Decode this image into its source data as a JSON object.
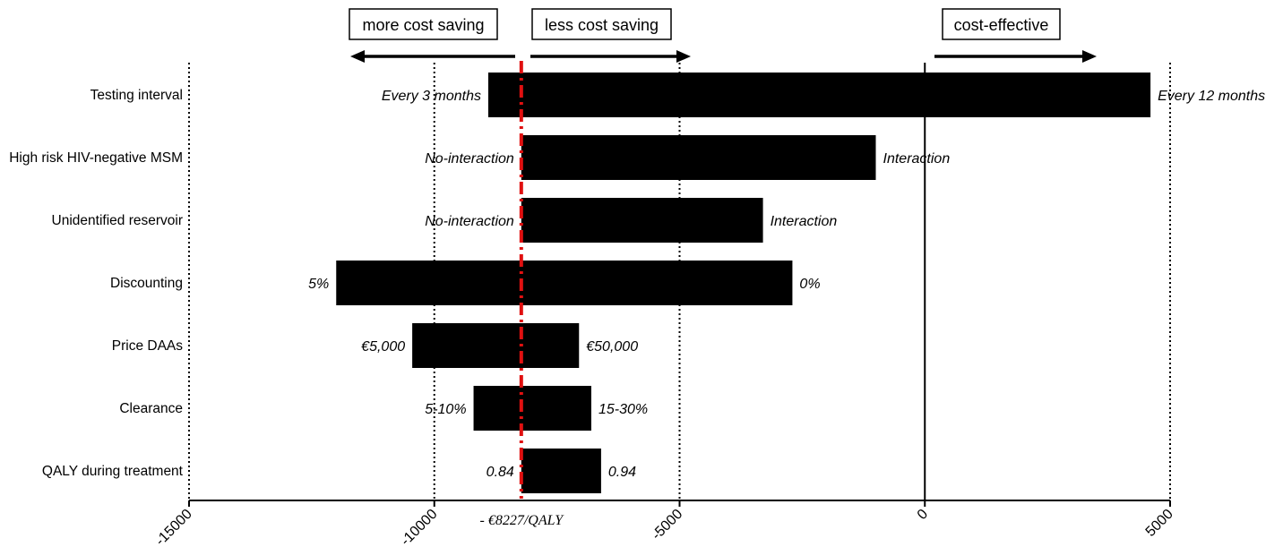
{
  "chart_data": {
    "type": "tornado",
    "x_range": [
      -15000,
      5000
    ],
    "x_ticks": [
      -15000,
      -10000,
      -5000,
      0,
      5000
    ],
    "gridlines": "dotted vertical at each tick; solid line at 0",
    "reference_line": {
      "value": -8227,
      "label": "- €8227/QALY",
      "color": "#e01010"
    },
    "direction_boxes": [
      {
        "label": "more cost saving",
        "arrow": "left"
      },
      {
        "label": "less cost saving",
        "arrow": "right"
      },
      {
        "label": "cost-effective",
        "arrow": "right"
      }
    ],
    "bars": [
      {
        "category": "Testing interval",
        "low": -8900,
        "high": 4600,
        "low_label": "Every 3 months",
        "high_label": "Every 12 months"
      },
      {
        "category": "High risk HIV-negative MSM",
        "low": -8227,
        "high": -1000,
        "low_label": "No-interaction",
        "high_label": "Interaction"
      },
      {
        "category": "Unidentified reservoir",
        "low": -8227,
        "high": -3300,
        "low_label": "No-interaction",
        "high_label": "Interaction"
      },
      {
        "category": "Discounting",
        "low": -12000,
        "high": -2700,
        "low_label": "5%",
        "high_label": "0%"
      },
      {
        "category": "Price DAAs",
        "low": -10450,
        "high": -7050,
        "low_label": "€5,000",
        "high_label": "€50,000"
      },
      {
        "category": "Clearance",
        "low": -9200,
        "high": -6800,
        "low_label": "5-10%",
        "high_label": "15-30%"
      },
      {
        "category": "QALY during treatment",
        "low": -8227,
        "high": -6600,
        "low_label": "0.84",
        "high_label": "0.94"
      }
    ],
    "bar_color": "#000000"
  }
}
